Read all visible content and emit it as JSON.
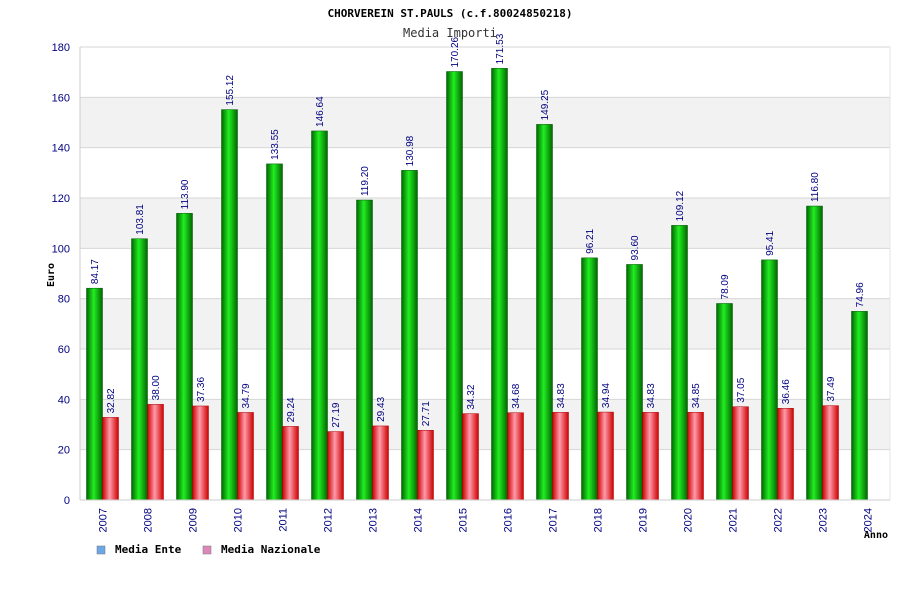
{
  "chart_data": {
    "type": "bar",
    "title": "CHORVEREIN ST.PAULS (c.f.80024850218)",
    "subtitle": "Media Importi",
    "ylabel": "Euro",
    "xlabel": "Anno",
    "ylim": [
      0,
      180
    ],
    "yticks": [
      0,
      20,
      40,
      60,
      80,
      100,
      120,
      140,
      160,
      180
    ],
    "grid": true,
    "legend_position": "bottom-left",
    "categories": [
      "2007",
      "2008",
      "2009",
      "2010",
      "2011",
      "2012",
      "2013",
      "2014",
      "2015",
      "2016",
      "2017",
      "2018",
      "2019",
      "2020",
      "2021",
      "2022",
      "2023",
      "2024"
    ],
    "series": [
      {
        "name": "Media Ente",
        "color": "#00aa00",
        "values": [
          84.17,
          103.81,
          113.9,
          155.12,
          133.55,
          146.64,
          119.2,
          130.98,
          170.26,
          171.53,
          149.25,
          96.21,
          93.6,
          109.12,
          78.09,
          95.41,
          116.8,
          74.96
        ],
        "labels": [
          "84.17",
          "103.81",
          "113.90",
          "155.12",
          "133.55",
          "146.64",
          "119.20",
          "130.98",
          "170.26",
          "171.53",
          "149.25",
          "96.21",
          "93.60",
          "109.12",
          "78.09",
          "95.41",
          "116.80",
          "74.96"
        ]
      },
      {
        "name": "Media Nazionale",
        "color": "#ee1111",
        "values": [
          32.82,
          38.0,
          37.36,
          34.79,
          29.24,
          27.19,
          29.43,
          27.71,
          34.32,
          34.68,
          34.83,
          34.94,
          34.83,
          34.85,
          37.05,
          36.46,
          37.49,
          null
        ],
        "labels": [
          "32.82",
          "38.00",
          "37.36",
          "34.79",
          "29.24",
          "27.19",
          "29.43",
          "27.71",
          "34.32",
          "34.68",
          "34.83",
          "34.94",
          "34.83",
          "34.85",
          "37.05",
          "36.46",
          "37.49",
          ""
        ]
      }
    ],
    "legend": [
      {
        "label": "Media Ente",
        "color": "#6aa8e8"
      },
      {
        "label": "Media Nazionale",
        "color": "#dd88bb"
      }
    ]
  }
}
